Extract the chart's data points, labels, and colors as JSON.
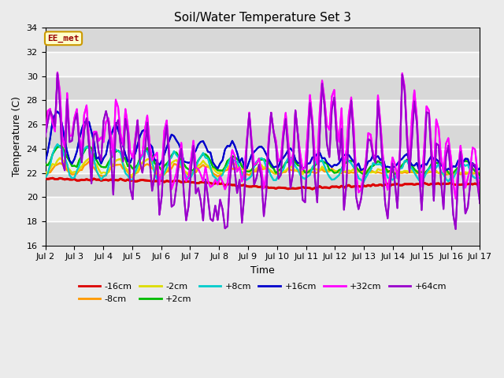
{
  "title": "Soil/Water Temperature Set 3",
  "xlabel": "Time",
  "ylabel": "Temperature (C)",
  "xlim": [
    0,
    15
  ],
  "ylim": [
    16,
    34
  ],
  "yticks": [
    16,
    18,
    20,
    22,
    24,
    26,
    28,
    30,
    32,
    34
  ],
  "xtick_labels": [
    "Jul 2",
    "Jul 3",
    "Jul 4",
    "Jul 5",
    "Jul 6",
    "Jul 7",
    "Jul 8",
    "Jul 9",
    "Jul 10",
    "Jul 11",
    "Jul 12",
    "Jul 13",
    "Jul 14",
    "Jul 15",
    "Jul 16",
    "Jul 17"
  ],
  "annotation_text": "EE_met",
  "annotation_bg": "#ffffcc",
  "annotation_border": "#cc9900",
  "annotation_text_color": "#990000",
  "series_names": [
    "-16cm",
    "-8cm",
    "-2cm",
    "+2cm",
    "+8cm",
    "+16cm",
    "+32cm",
    "+64cm"
  ],
  "series_colors": [
    "#dd0000",
    "#ff9900",
    "#dddd00",
    "#00bb00",
    "#00cccc",
    "#0000cc",
    "#ff00ff",
    "#9900cc"
  ],
  "series_linewidths": [
    2.0,
    1.5,
    1.5,
    1.5,
    1.5,
    1.5,
    1.5,
    1.5
  ],
  "bg_color": "#ebebeb",
  "plot_bg_color": "#ebebeb",
  "grid_color": "#ffffff",
  "figsize": [
    6.4,
    4.8
  ],
  "dpi": 100
}
